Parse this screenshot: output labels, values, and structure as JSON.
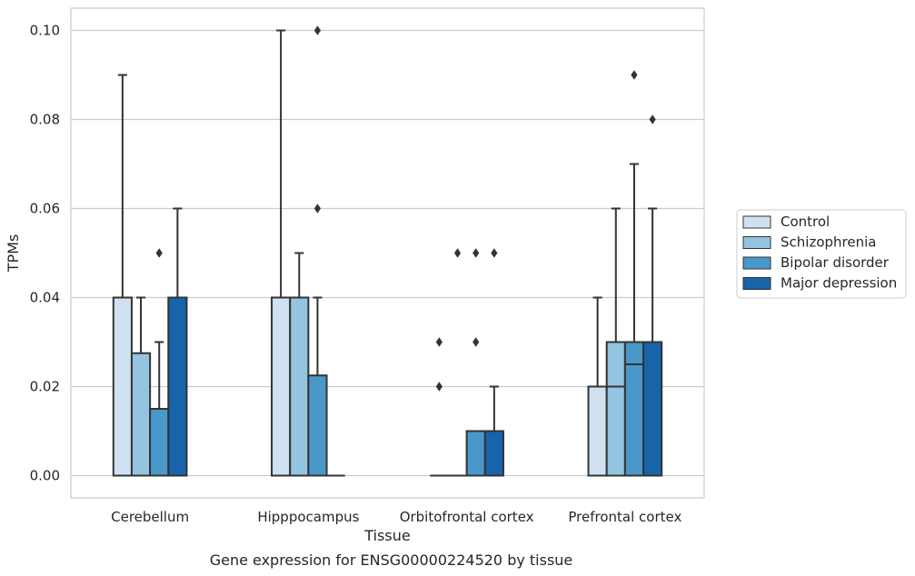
{
  "chart_data": {
    "type": "box",
    "title": "",
    "caption": "Gene expression for ENSG00000224520 by tissue",
    "xlabel": "Tissue",
    "ylabel": "TPMs",
    "ylim": [
      -0.005,
      0.105
    ],
    "yticks": [
      0.0,
      0.02,
      0.04,
      0.06,
      0.08,
      0.1
    ],
    "ytick_labels": [
      "0.00",
      "0.02",
      "0.04",
      "0.06",
      "0.08",
      "0.10"
    ],
    "grid": "horizontal",
    "legend_position": "right",
    "categories": [
      "Cerebellum",
      "Hipppocampus",
      "Orbitofrontal cortex",
      "Prefrontal cortex"
    ],
    "series": [
      {
        "name": "Control",
        "color": "#d0e1f2",
        "boxes": [
          {
            "q1": 0.0,
            "median": 0.0,
            "q3": 0.04,
            "whisker_low": 0.0,
            "whisker_high": 0.09,
            "outliers": []
          },
          {
            "q1": 0.0,
            "median": 0.0,
            "q3": 0.04,
            "whisker_low": 0.0,
            "whisker_high": 0.1,
            "outliers": []
          },
          {
            "q1": 0.0,
            "median": 0.0,
            "q3": 0.0,
            "whisker_low": 0.0,
            "whisker_high": 0.0,
            "outliers": [
              0.02,
              0.03
            ]
          },
          {
            "q1": 0.0,
            "median": 0.0,
            "q3": 0.02,
            "whisker_low": 0.0,
            "whisker_high": 0.04,
            "outliers": []
          }
        ]
      },
      {
        "name": "Schizophrenia",
        "color": "#94c4df",
        "boxes": [
          {
            "q1": 0.0,
            "median": 0.0,
            "q3": 0.0275,
            "whisker_low": 0.0,
            "whisker_high": 0.04,
            "outliers": []
          },
          {
            "q1": 0.0,
            "median": 0.0,
            "q3": 0.04,
            "whisker_low": 0.0,
            "whisker_high": 0.05,
            "outliers": []
          },
          {
            "q1": 0.0,
            "median": 0.0,
            "q3": 0.0,
            "whisker_low": 0.0,
            "whisker_high": 0.0,
            "outliers": [
              0.05
            ]
          },
          {
            "q1": 0.0,
            "median": 0.02,
            "q3": 0.03,
            "whisker_low": 0.0,
            "whisker_high": 0.06,
            "outliers": []
          }
        ]
      },
      {
        "name": "Bipolar disorder",
        "color": "#4a98c9",
        "boxes": [
          {
            "q1": 0.0,
            "median": 0.0,
            "q3": 0.015,
            "whisker_low": 0.0,
            "whisker_high": 0.03,
            "outliers": [
              0.05
            ]
          },
          {
            "q1": 0.0,
            "median": 0.0,
            "q3": 0.0225,
            "whisker_low": 0.0,
            "whisker_high": 0.04,
            "outliers": [
              0.06,
              0.1
            ]
          },
          {
            "q1": 0.0,
            "median": 0.0,
            "q3": 0.01,
            "whisker_low": 0.0,
            "whisker_high": 0.01,
            "outliers": [
              0.03,
              0.05
            ]
          },
          {
            "q1": 0.0,
            "median": 0.025,
            "q3": 0.03,
            "whisker_low": 0.0,
            "whisker_high": 0.07,
            "outliers": [
              0.09
            ]
          }
        ]
      },
      {
        "name": "Major depression",
        "color": "#1764ab",
        "boxes": [
          {
            "q1": 0.0,
            "median": 0.0,
            "q3": 0.04,
            "whisker_low": 0.0,
            "whisker_high": 0.06,
            "outliers": []
          },
          {
            "q1": 0.0,
            "median": 0.0,
            "q3": 0.0,
            "whisker_low": 0.0,
            "whisker_high": 0.0,
            "outliers": []
          },
          {
            "q1": 0.0,
            "median": 0.0,
            "q3": 0.01,
            "whisker_low": 0.0,
            "whisker_high": 0.02,
            "outliers": [
              0.05
            ]
          },
          {
            "q1": 0.0,
            "median": 0.0,
            "q3": 0.03,
            "whisker_low": 0.0,
            "whisker_high": 0.06,
            "outliers": [
              0.08
            ]
          }
        ]
      }
    ]
  }
}
